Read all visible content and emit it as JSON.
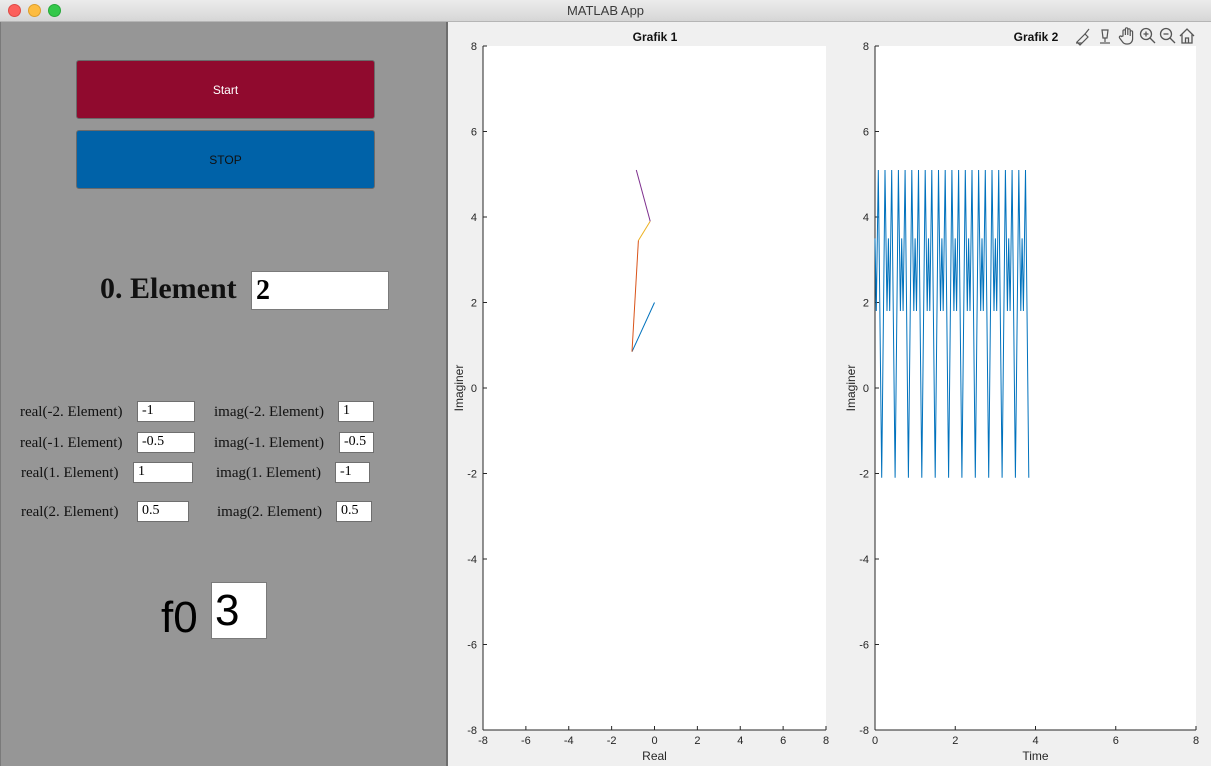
{
  "window": {
    "title": "MATLAB App"
  },
  "controls": {
    "start_label": "Start",
    "stop_label": "STOP",
    "element0_label": "0. Element",
    "element0_value": "2",
    "fields": [
      {
        "label": "real(-2. Element)",
        "value": "-1"
      },
      {
        "label": "imag(-2. Element)",
        "value": "1"
      },
      {
        "label": "real(-1. Element)",
        "value": "-0.5"
      },
      {
        "label": "imag(-1. Element)",
        "value": "-0.5"
      },
      {
        "label": "real(1. Element)",
        "value": "1"
      },
      {
        "label": "imag(1. Element)",
        "value": "-1"
      },
      {
        "label": "real(2. Element)",
        "value": "0.5"
      },
      {
        "label": "imag(2. Element)",
        "value": "0.5"
      }
    ],
    "f0_label": "f0",
    "f0_value": "3"
  },
  "axes_toolbar": [
    "brush-icon",
    "data-tips-icon",
    "pan-icon",
    "zoom-in-icon",
    "zoom-out-icon",
    "home-icon"
  ],
  "chart_data": [
    {
      "type": "line",
      "title": "Grafik 1",
      "xlabel": "Real",
      "ylabel": "Imaginer",
      "xlim": [
        -8,
        8
      ],
      "ylim": [
        -8,
        8
      ],
      "xticks": [
        "-8",
        "-6",
        "-4",
        "-2",
        "0",
        "2",
        "4",
        "6",
        "8"
      ],
      "yticks": [
        "-8",
        "-6",
        "-4",
        "-2",
        "0",
        "2",
        "4",
        "6",
        "8"
      ],
      "grid": false,
      "series": [
        {
          "color": "#0072bd",
          "points": [
            [
              0,
              2
            ],
            [
              -1.05,
              0.85
            ]
          ]
        },
        {
          "color": "#d95319",
          "points": [
            [
              -1.05,
              0.85
            ],
            [
              -0.75,
              3.45
            ]
          ]
        },
        {
          "color": "#edb120",
          "points": [
            [
              -0.75,
              3.45
            ],
            [
              -0.2,
              3.9
            ]
          ]
        },
        {
          "color": "#7e2f8e",
          "points": [
            [
              -0.2,
              3.9
            ],
            [
              -0.85,
              5.1
            ]
          ]
        }
      ]
    },
    {
      "type": "line",
      "title": "Grafik 2",
      "xlabel": "Time",
      "ylabel": "Imaginer",
      "xlim": [
        0,
        8
      ],
      "ylim": [
        -8,
        8
      ],
      "xticks": [
        "0",
        "2",
        "4",
        "6",
        "8"
      ],
      "yticks": [
        "-8",
        "-6",
        "-4",
        "-2",
        "0",
        "2",
        "4",
        "6",
        "8"
      ],
      "grid": false,
      "series": [
        {
          "color": "#0072bd",
          "period": 0.3333,
          "t_end": 3.85,
          "pattern": [
            [
              0,
              3.5
            ],
            [
              0.0333,
              1.8
            ],
            [
              0.0833,
              5.1
            ],
            [
              0.1667,
              -2.1
            ],
            [
              0.25,
              5.1
            ],
            [
              0.3,
              1.8
            ],
            [
              0.3333,
              3.5
            ]
          ]
        }
      ]
    }
  ]
}
